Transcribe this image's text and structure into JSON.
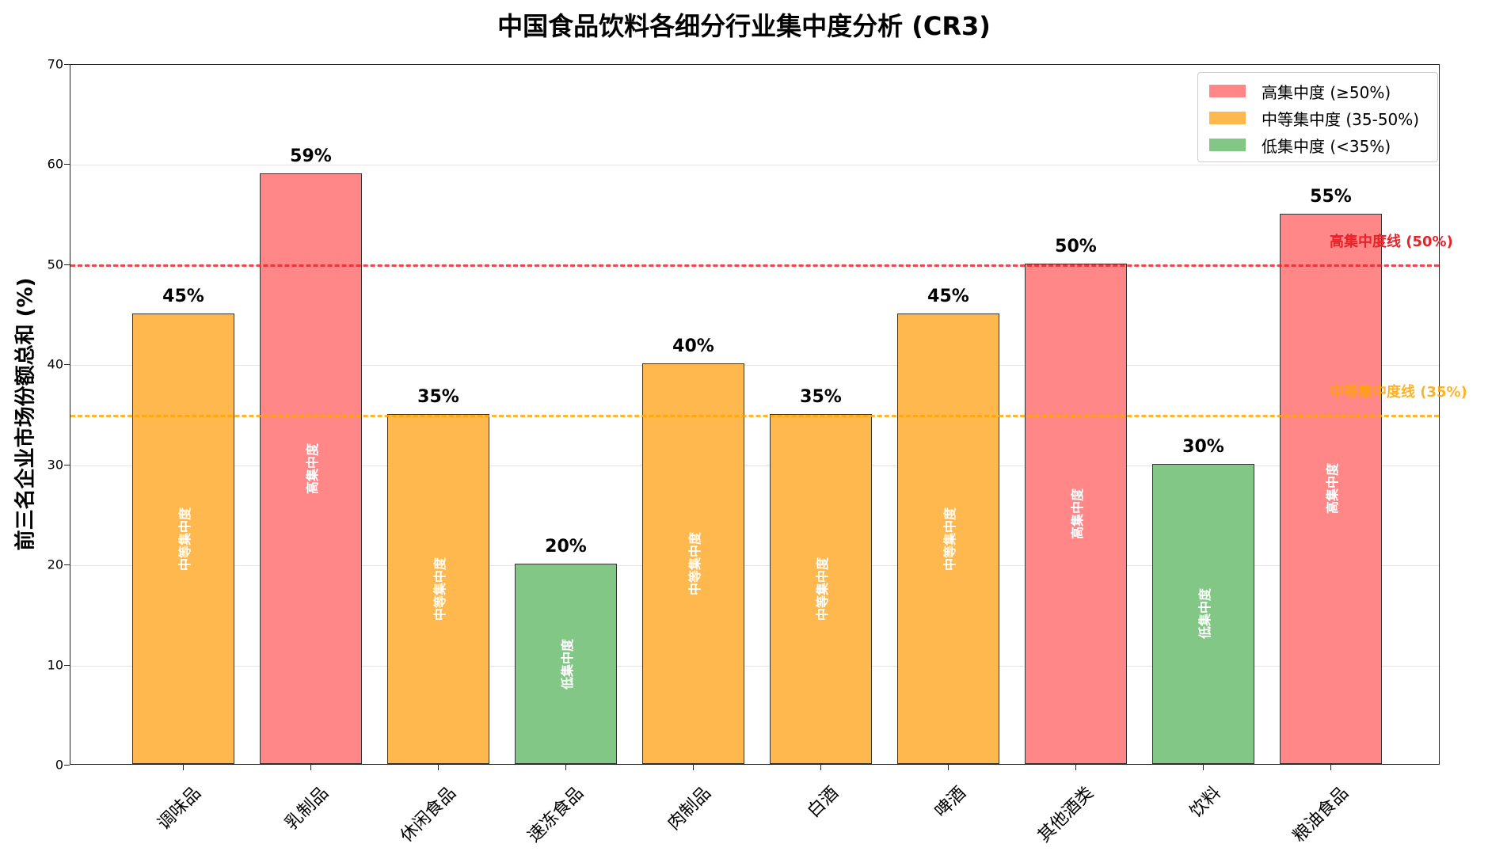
{
  "title": "中国食品饮料各细分行业集中度分析 (CR3)",
  "y_axis": {
    "label": "前三名企业市场份额总和 (%)",
    "ticks": [
      "0",
      "10",
      "20",
      "30",
      "40",
      "50",
      "60",
      "70"
    ]
  },
  "legend": {
    "items": [
      {
        "label": "高集中度 (≥50%)",
        "color": "#ff8787"
      },
      {
        "label": "中等集中度 (35-50%)",
        "color": "#ffb84d"
      },
      {
        "label": "低集中度 (<35%)",
        "color": "#82c785"
      }
    ]
  },
  "reference_lines": {
    "high": {
      "label": "高集中度线 (50%)",
      "value": 50,
      "color": "#e8222a"
    },
    "medium": {
      "label": "中等集中度线 (35%)",
      "value": 35,
      "color": "#ffa500"
    }
  },
  "bars": [
    {
      "category": "调味品",
      "value_label": "45%",
      "tier_label": "中等集中度"
    },
    {
      "category": "乳制品",
      "value_label": "59%",
      "tier_label": "高集中度"
    },
    {
      "category": "休闲食品",
      "value_label": "35%",
      "tier_label": "中等集中度"
    },
    {
      "category": "速冻食品",
      "value_label": "20%",
      "tier_label": "低集中度"
    },
    {
      "category": "肉制品",
      "value_label": "40%",
      "tier_label": "中等集中度"
    },
    {
      "category": "白酒",
      "value_label": "35%",
      "tier_label": "中等集中度"
    },
    {
      "category": "啤酒",
      "value_label": "45%",
      "tier_label": "中等集中度"
    },
    {
      "category": "其他酒类",
      "value_label": "50%",
      "tier_label": "高集中度"
    },
    {
      "category": "饮料",
      "value_label": "30%",
      "tier_label": "低集中度"
    },
    {
      "category": "粮油食品",
      "value_label": "55%",
      "tier_label": "高集中度"
    }
  ],
  "chart_data": {
    "type": "bar",
    "title": "中国食品饮料各细分行业集中度分析 (CR3)",
    "xlabel": "",
    "ylabel": "前三名企业市场份额总和 (%)",
    "ylim": [
      0,
      70
    ],
    "yticks": [
      0,
      10,
      20,
      30,
      40,
      50,
      60,
      70
    ],
    "grid": "y",
    "legend_position": "upper right",
    "categories": [
      "调味品",
      "乳制品",
      "休闲食品",
      "速冻食品",
      "肉制品",
      "白酒",
      "啤酒",
      "其他酒类",
      "饮料",
      "粮油食品"
    ],
    "values": [
      45,
      59,
      35,
      20,
      40,
      35,
      45,
      50,
      30,
      55
    ],
    "colors": [
      "#ffb84d",
      "#ff8787",
      "#ffb84d",
      "#82c785",
      "#ffb84d",
      "#ffb84d",
      "#ffb84d",
      "#ff8787",
      "#82c785",
      "#ff8787"
    ],
    "tiers": [
      "中等集中度",
      "高集中度",
      "中等集中度",
      "低集中度",
      "中等集中度",
      "中等集中度",
      "中等集中度",
      "高集中度",
      "低集中度",
      "高集中度"
    ],
    "reference_lines": [
      {
        "y": 50,
        "label": "高集中度线 (50%)",
        "color": "#e8222a",
        "style": "dashed"
      },
      {
        "y": 35,
        "label": "中等集中度线 (35%)",
        "color": "#ffa500",
        "style": "dashed"
      }
    ],
    "legend": [
      "高集中度 (≥50%)",
      "中等集中度 (35-50%)",
      "低集中度 (<35%)"
    ]
  }
}
